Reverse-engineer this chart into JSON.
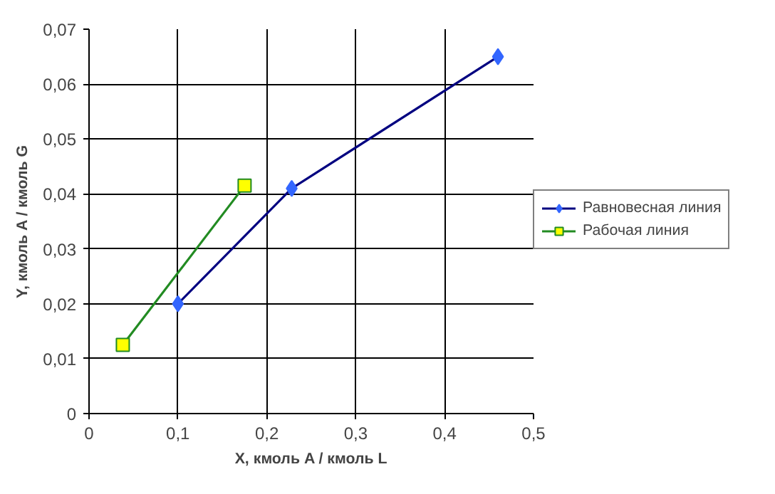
{
  "chart_data": {
    "type": "line",
    "xlabel": "X, кмоль A / кмоль L",
    "ylabel": "Y, кмоль A / кмоль G",
    "xlim": [
      0,
      0.5
    ],
    "xticks": [
      0,
      {
        "value": 0.1,
        "label": "0,1"
      },
      {
        "value": 0.2,
        "label": "0,2"
      },
      {
        "value": 0.3,
        "label": "0,3"
      },
      {
        "value": 0.4,
        "label": "0,4"
      },
      {
        "value": 0.5,
        "label": "0,5"
      }
    ],
    "ylim": [
      0,
      0.07
    ],
    "yticks": [
      0,
      {
        "value": 0.01,
        "label": "0,01"
      },
      {
        "value": 0.02,
        "label": "0,02"
      },
      {
        "value": 0.03,
        "label": "0,03"
      },
      {
        "value": 0.04,
        "label": "0,04"
      },
      {
        "value": 0.05,
        "label": "0,05"
      },
      {
        "value": 0.06,
        "label": "0,06"
      },
      {
        "value": 0.07,
        "label": "0,07"
      }
    ],
    "grid": true,
    "legend": "right",
    "line_style": "solid",
    "series": [
      {
        "name": "Равновесная линия",
        "color": "#000080",
        "colors": [
          "#3366ff",
          "#3366ff",
          "#3366ff"
        ],
        "marker": "diamond",
        "x": [
          0.1,
          0.228,
          0.46
        ],
        "values": [
          0.02,
          0.041,
          0.065
        ]
      },
      {
        "name": "Рабочая линия",
        "color": "#228b22",
        "colors": [
          "#ffff00",
          "#ffff00"
        ],
        "marker": "square",
        "x": [
          0.038,
          0.175
        ],
        "values": [
          0.0125,
          0.0415
        ]
      }
    ]
  }
}
